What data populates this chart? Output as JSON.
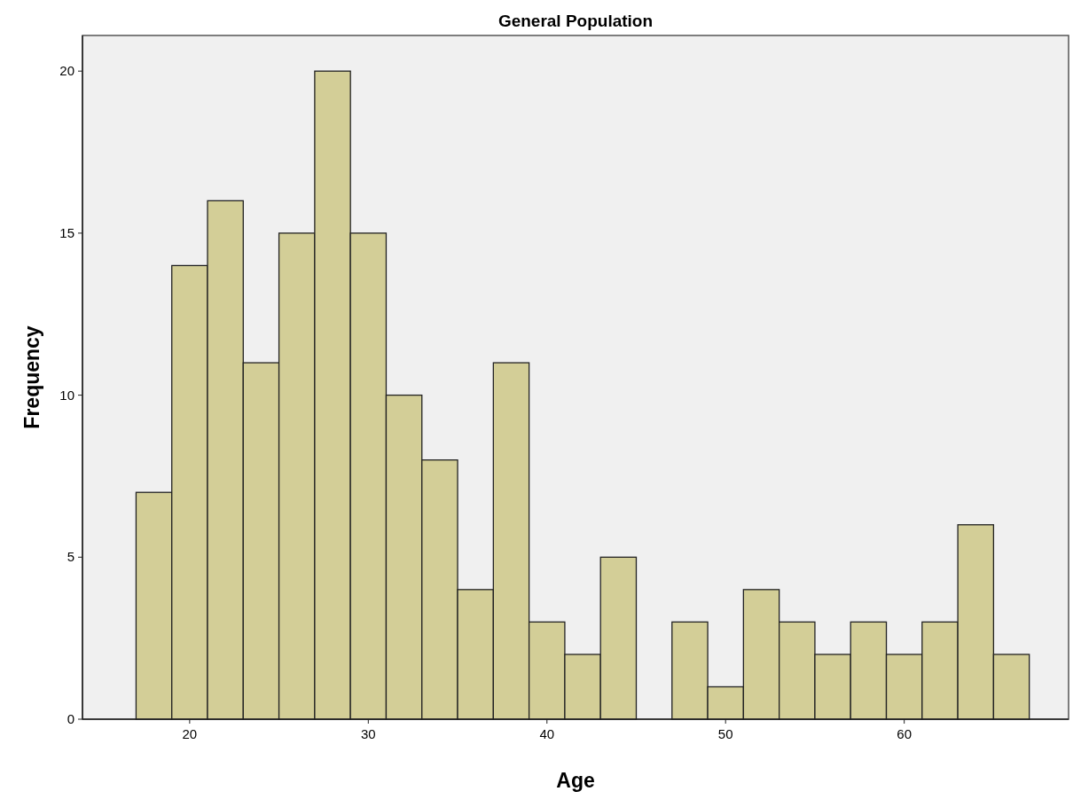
{
  "chart_data": {
    "type": "histogram",
    "title": "General Population",
    "xlabel": "Age",
    "ylabel": "Frequency",
    "bins": [
      17,
      19,
      21,
      23,
      25,
      27,
      29,
      31,
      33,
      35,
      37,
      39,
      41,
      43,
      45,
      47,
      49,
      51,
      53,
      55,
      57,
      59,
      61,
      63,
      65,
      67
    ],
    "values": [
      7,
      14,
      16,
      11,
      15,
      20,
      15,
      10,
      8,
      4,
      11,
      3,
      2,
      5,
      0,
      3,
      1,
      4,
      3,
      2,
      3,
      2,
      3,
      6,
      2
    ],
    "color": "#d3ce97",
    "xlim": [
      14,
      69.2
    ],
    "xticks": [
      20,
      30,
      40,
      50,
      60
    ],
    "ylim": [
      0,
      21.1
    ],
    "yticks": [
      0,
      5,
      10,
      15,
      20
    ],
    "grid": false
  }
}
